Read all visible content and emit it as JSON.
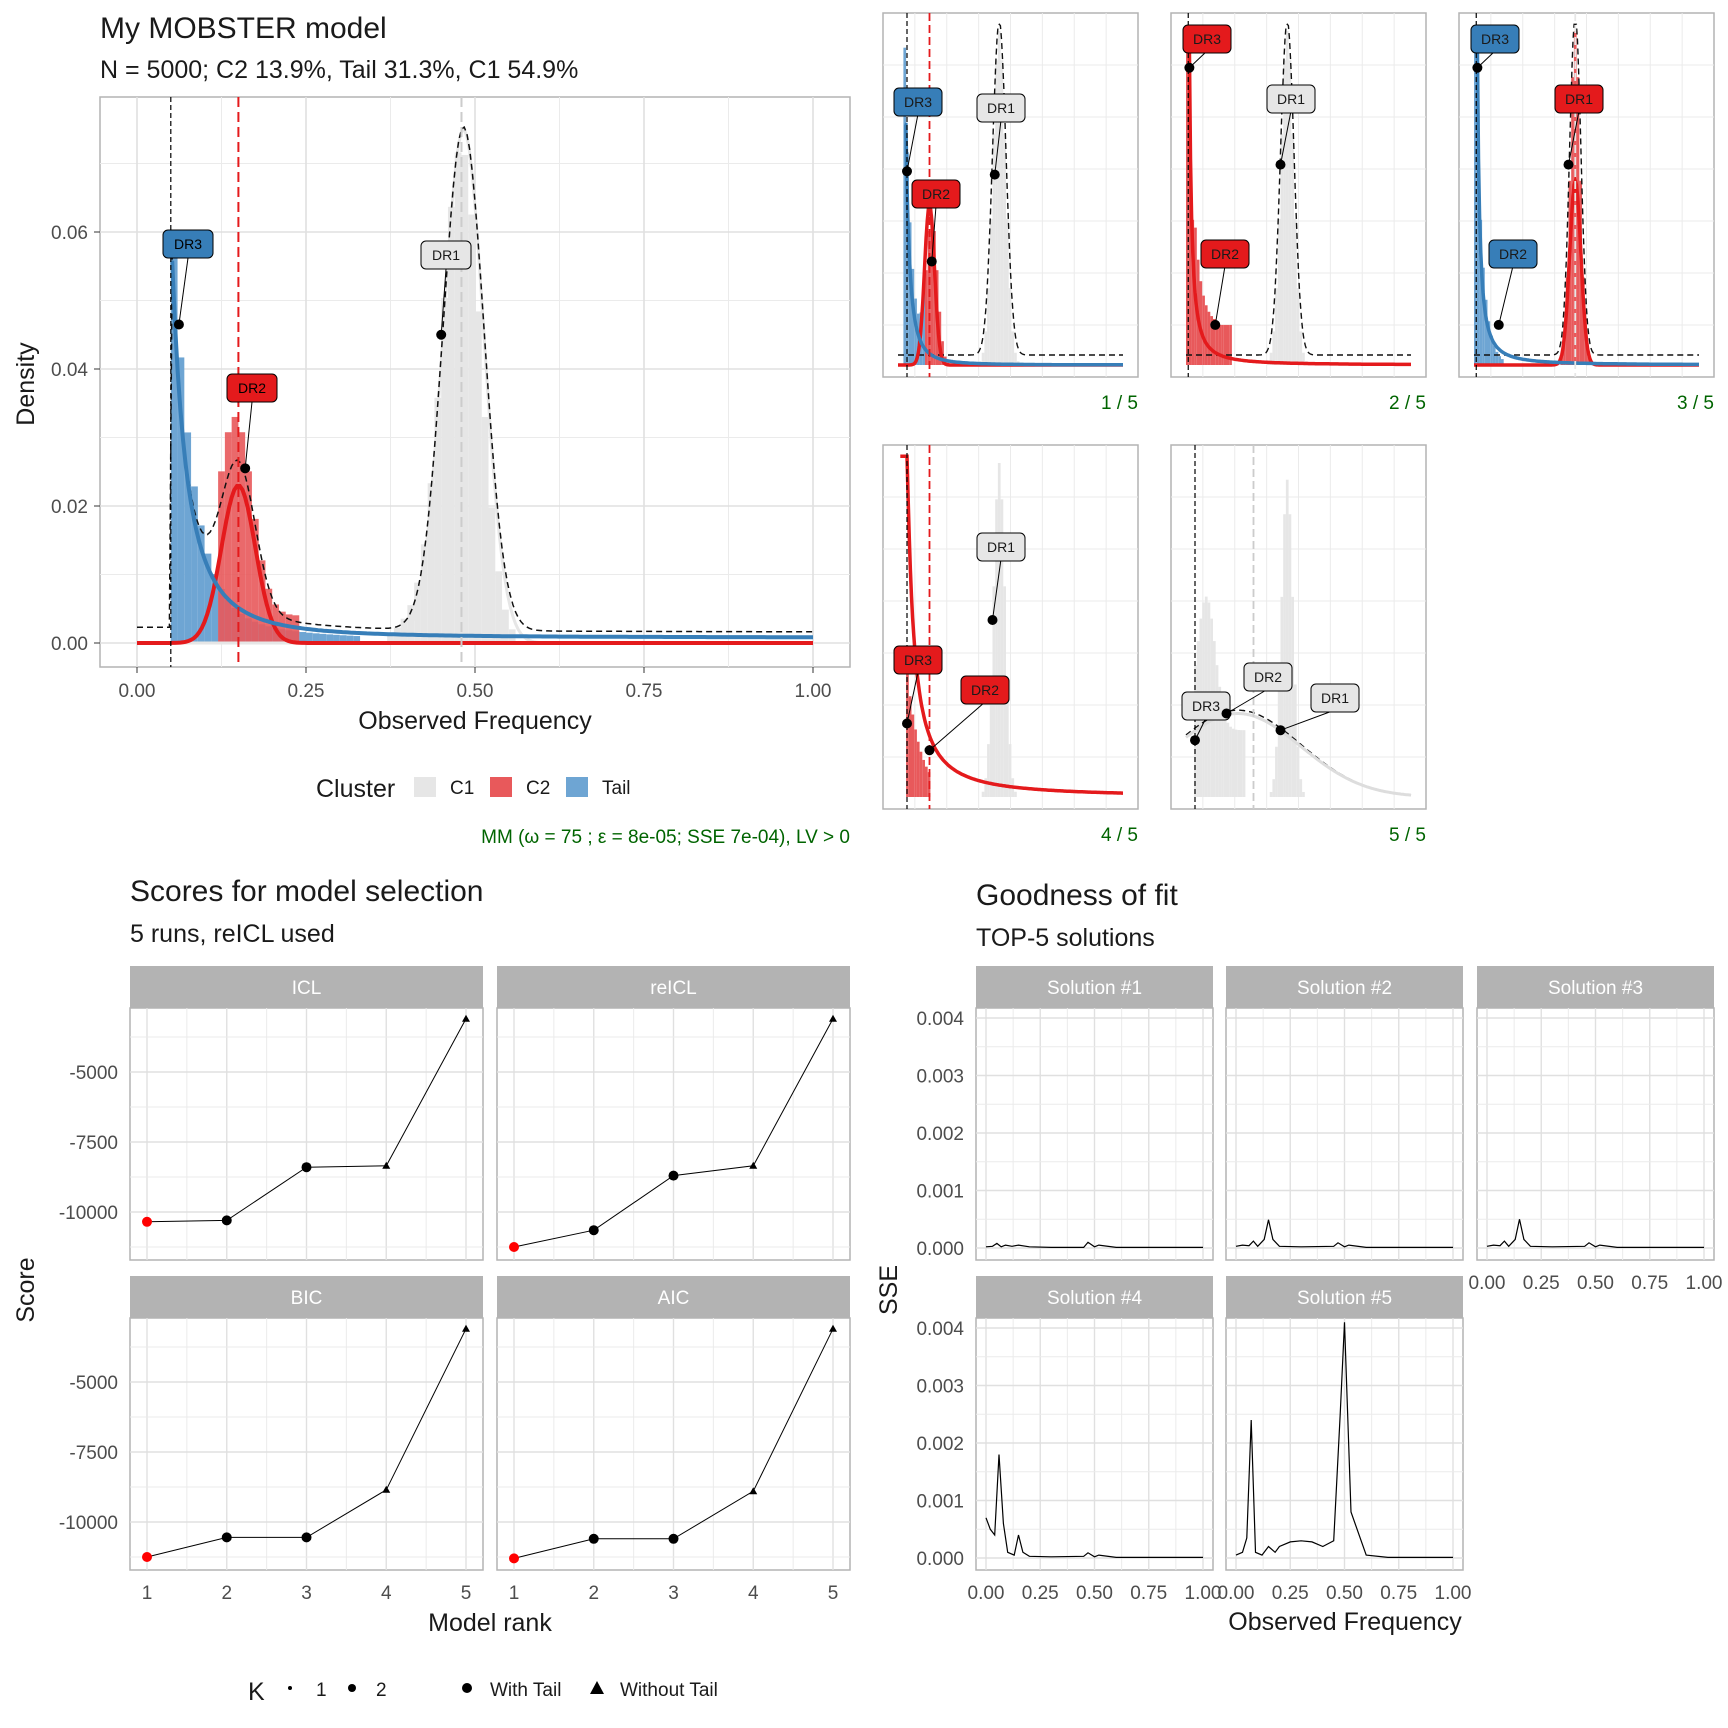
{
  "main": {
    "title": "My MOBSTER model",
    "subtitle": "N = 5000; C2 13.9%, Tail 31.3%, C1 54.9%",
    "xlabel": "Observed Frequency",
    "ylabel": "Density",
    "xticks": [
      "0.00",
      "0.25",
      "0.50",
      "0.75",
      "1.00"
    ],
    "yticks": [
      "0.00",
      "0.02",
      "0.04",
      "0.06"
    ],
    "labels": [
      "DR3",
      "DR2",
      "DR1"
    ],
    "legend_title": "Cluster",
    "legend": [
      "C1",
      "C2",
      "Tail"
    ],
    "caption": "MM (ω = 75 ; ε = 8e-05; SSE 7e-04), LV > 0"
  },
  "mini": {
    "captions": [
      "1 / 5",
      "2 / 5",
      "3 / 5",
      "4 / 5",
      "5 / 5"
    ],
    "labels": [
      "DR1",
      "DR2",
      "DR3"
    ]
  },
  "scores": {
    "title": "Scores for model selection",
    "subtitle": "5 runs,  reICL used",
    "panels": [
      "ICL",
      "reICL",
      "BIC",
      "AIC"
    ],
    "yticks": [
      "-5000",
      "-7500",
      "-10000"
    ],
    "xticks": [
      "1",
      "2",
      "3",
      "4",
      "5"
    ],
    "xlabel": "Model rank",
    "ylabel": "Score",
    "legend": {
      "k_title": "K",
      "k1": "1",
      "k2": "2",
      "with_tail": "With Tail",
      "without_tail": "Without Tail"
    }
  },
  "gof": {
    "title": "Goodness of fit",
    "subtitle": "TOP-5 solutions",
    "panels": [
      "Solution #1",
      "Solution #2",
      "Solution #3",
      "Solution #4",
      "Solution #5"
    ],
    "yticks": [
      "0.000",
      "0.001",
      "0.002",
      "0.003",
      "0.004"
    ],
    "xticks": [
      "0.00",
      "0.25",
      "0.50",
      "0.75",
      "1.00"
    ],
    "xlabel": "Observed Frequency",
    "ylabel": "SSE"
  },
  "colors": {
    "C1": "#e6e6e6",
    "C2": "#e41a1c",
    "Tail": "#377eb8",
    "grid": "#ebebeb",
    "strip": "#b3b3b3",
    "caption": "#006400"
  },
  "chart_data": [
    {
      "type": "bar",
      "id": "main-histogram",
      "title": "My MOBSTER model",
      "xlabel": "Observed Frequency",
      "ylabel": "Density",
      "xlim": [
        0,
        1
      ],
      "ylim": [
        0,
        0.077
      ],
      "series": [
        {
          "name": "C1",
          "peak_x": 0.48,
          "peak_density": 0.075
        },
        {
          "name": "C2",
          "peak_x": 0.15,
          "peak_density": 0.023
        },
        {
          "name": "Tail",
          "peak_x": 0.06,
          "peak_density": 0.053
        }
      ],
      "vlines": [
        0.05,
        0.15,
        0.48
      ],
      "driver_points": [
        {
          "label": "DR3",
          "x": 0.062,
          "y": 0.0465
        },
        {
          "label": "DR2",
          "x": 0.16,
          "y": 0.0255
        },
        {
          "label": "DR1",
          "x": 0.45,
          "y": 0.045
        }
      ]
    },
    {
      "type": "line",
      "id": "scores",
      "xlabel": "Model rank",
      "ylabel": "Score",
      "x": [
        1,
        2,
        3,
        4,
        5
      ],
      "ylim": [
        -11800,
        -2800
      ],
      "series": [
        {
          "name": "ICL",
          "values": [
            -10350,
            -10300,
            -8400,
            -8350,
            -3100
          ]
        },
        {
          "name": "reICL",
          "values": [
            -11250,
            -10650,
            -8700,
            -8350,
            -3100
          ]
        },
        {
          "name": "BIC",
          "values": [
            -11250,
            -10550,
            -10550,
            -8850,
            -3100
          ]
        },
        {
          "name": "AIC",
          "values": [
            -11300,
            -10600,
            -10600,
            -8900,
            -3100
          ]
        }
      ],
      "K": [
        1,
        2,
        2,
        1,
        1
      ],
      "tail": [
        "With Tail",
        "With Tail",
        "With Tail",
        "Without Tail",
        "Without Tail"
      ]
    },
    {
      "type": "line",
      "id": "goodness-of-fit",
      "xlabel": "Observed Frequency",
      "ylabel": "SSE",
      "xlim": [
        0,
        1
      ],
      "ylim": [
        -5e-05,
        0.0042
      ],
      "series": [
        {
          "name": "Solution #1",
          "x": [
            0,
            0.03,
            0.05,
            0.07,
            0.09,
            0.12,
            0.15,
            0.2,
            0.3,
            0.45,
            0.47,
            0.5,
            0.52,
            0.6,
            0.8,
            1.0
          ],
          "values": [
            2e-05,
            3e-05,
            8e-05,
            2e-05,
            5e-05,
            3e-05,
            5e-05,
            2e-05,
            1e-05,
            1e-05,
            0.0001,
            2e-05,
            5e-05,
            1e-05,
            1e-05,
            1e-05
          ]
        },
        {
          "name": "Solution #2",
          "x": [
            0,
            0.03,
            0.06,
            0.08,
            0.1,
            0.13,
            0.15,
            0.17,
            0.2,
            0.3,
            0.45,
            0.47,
            0.5,
            0.52,
            0.6,
            1.0
          ],
          "values": [
            3e-05,
            5e-05,
            4e-05,
            0.00012,
            3e-05,
            0.00015,
            0.00049,
            0.00015,
            3e-05,
            2e-05,
            3e-05,
            9e-05,
            2e-05,
            5e-05,
            1e-05,
            1e-05
          ]
        },
        {
          "name": "Solution #3",
          "x": [
            0,
            0.03,
            0.06,
            0.08,
            0.1,
            0.13,
            0.15,
            0.17,
            0.2,
            0.3,
            0.45,
            0.47,
            0.5,
            0.52,
            0.6,
            1.0
          ],
          "values": [
            3e-05,
            5e-05,
            4e-05,
            0.00012,
            3e-05,
            0.00015,
            0.0005,
            0.00015,
            3e-05,
            2e-05,
            3e-05,
            9e-05,
            2e-05,
            5e-05,
            1e-05,
            1e-05
          ]
        },
        {
          "name": "Solution #4",
          "x": [
            0,
            0.02,
            0.04,
            0.06,
            0.08,
            0.1,
            0.13,
            0.15,
            0.17,
            0.2,
            0.3,
            0.45,
            0.47,
            0.5,
            0.52,
            0.6,
            1.0
          ],
          "values": [
            0.0007,
            0.0005,
            0.0004,
            0.0018,
            0.0006,
            0.0001,
            5e-05,
            0.0004,
            0.0001,
            3e-05,
            2e-05,
            3e-05,
            9e-05,
            2e-05,
            5e-05,
            1e-05,
            1e-05
          ]
        },
        {
          "name": "Solution #5",
          "x": [
            0,
            0.03,
            0.05,
            0.07,
            0.09,
            0.12,
            0.15,
            0.18,
            0.2,
            0.25,
            0.3,
            0.35,
            0.4,
            0.45,
            0.48,
            0.5,
            0.53,
            0.6,
            0.7,
            1.0
          ],
          "values": [
            5e-05,
            0.0001,
            0.00035,
            0.0024,
            0.0001,
            5e-05,
            0.0002,
            0.0001,
            0.0002,
            0.00028,
            0.0003,
            0.00028,
            0.0002,
            0.0003,
            0.0025,
            0.0041,
            0.0008,
            5e-05,
            1e-05,
            1e-05
          ]
        }
      ]
    }
  ]
}
